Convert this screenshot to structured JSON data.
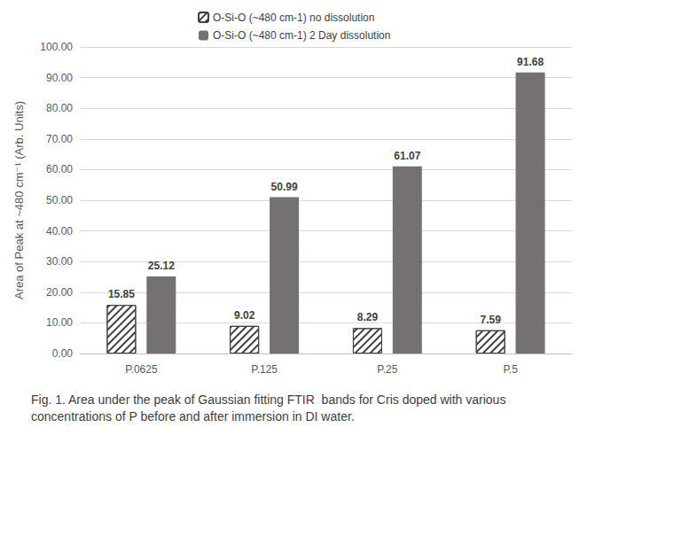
{
  "chart_data": {
    "type": "bar",
    "title": "Fig. 1. Area under the peak of Gaussian fitting FTIR  bands for Cris doped with various concentrations of P before and after immersion in DI water.",
    "y_label": "Area of Peak at ~480 cm⁻¹ (Arb. Units)",
    "categories": [
      "P.0625",
      "P.125",
      "P.25",
      "P.5"
    ],
    "series": [
      {
        "name": "O-Si-O (~480 cm-1) no dissolution",
        "color": "#404040",
        "marker": "hatched",
        "values": [
          15.85,
          9.02,
          8.29,
          7.59
        ]
      },
      {
        "name": "O-Si-O (~480 cm-1) 2 Day dissolution",
        "color": "#767171",
        "marker": "solid",
        "values": [
          25.12,
          50.99,
          61.07,
          91.68
        ]
      }
    ],
    "ylim": [
      0,
      100
    ],
    "yticks": [
      {
        "value": 0,
        "label": "0.00"
      },
      {
        "value": 10,
        "label": "10.00"
      },
      {
        "value": 20,
        "label": "20.00"
      },
      {
        "value": 30,
        "label": "30.00"
      },
      {
        "value": 40,
        "label": "40.00"
      },
      {
        "value": 50,
        "label": "50.00"
      },
      {
        "value": 60,
        "label": "60.00"
      },
      {
        "value": 70,
        "label": "70.00"
      },
      {
        "value": 80,
        "label": "80.00"
      },
      {
        "value": 90,
        "label": "90.00"
      },
      {
        "value": 100,
        "label": "100.00"
      }
    ],
    "grid": true,
    "legend": "top",
    "data_labels": true
  }
}
